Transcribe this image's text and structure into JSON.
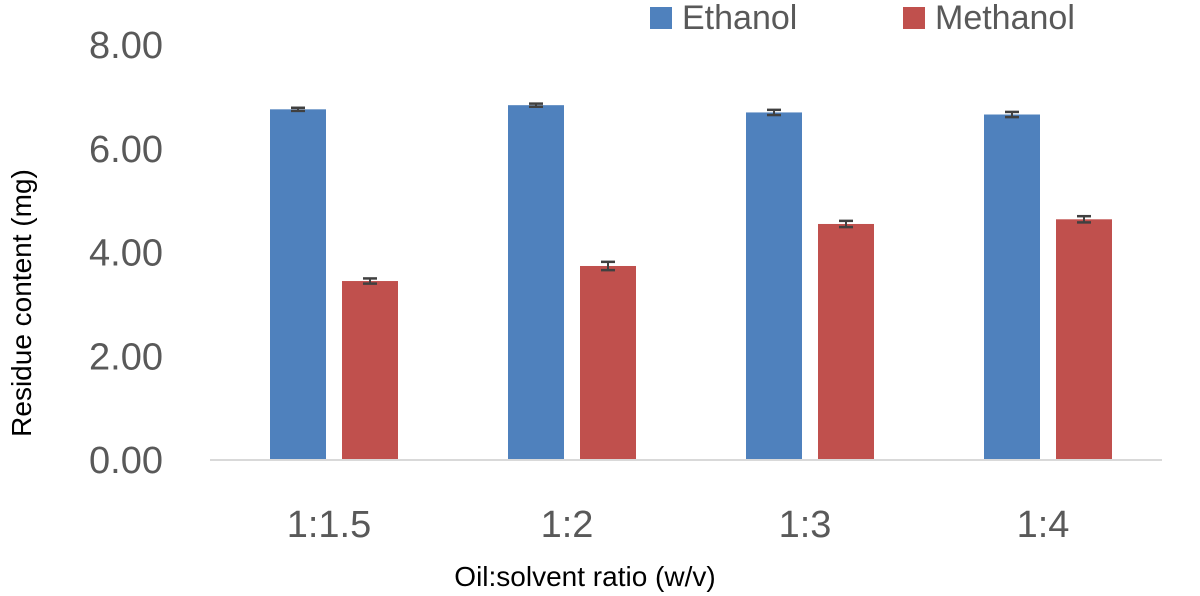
{
  "chart_data": {
    "type": "bar",
    "title": "",
    "xlabel": "Oil:solvent ratio (w/v)",
    "ylabel": "Residue content (mg)",
    "categories": [
      "1:1.5",
      "1:2",
      "1:3",
      "1:4"
    ],
    "series": [
      {
        "name": "Ethanol",
        "color": "#4F81BD",
        "values": [
          6.76,
          6.84,
          6.7,
          6.66
        ],
        "errors": [
          0.03,
          0.03,
          0.05,
          0.05
        ]
      },
      {
        "name": "Methanol",
        "color": "#C0504D",
        "values": [
          3.45,
          3.74,
          4.55,
          4.64
        ],
        "errors": [
          0.05,
          0.08,
          0.06,
          0.06
        ]
      }
    ],
    "ylim": [
      0,
      8
    ],
    "yticks": [
      "0.00",
      "2.00",
      "4.00",
      "6.00",
      "8.00"
    ],
    "ytick_values": [
      0,
      2,
      4,
      6,
      8
    ],
    "grid": false,
    "legend_position": "top-right",
    "axis_color": "#D9D9D9",
    "error_bar_color": "#404040"
  }
}
